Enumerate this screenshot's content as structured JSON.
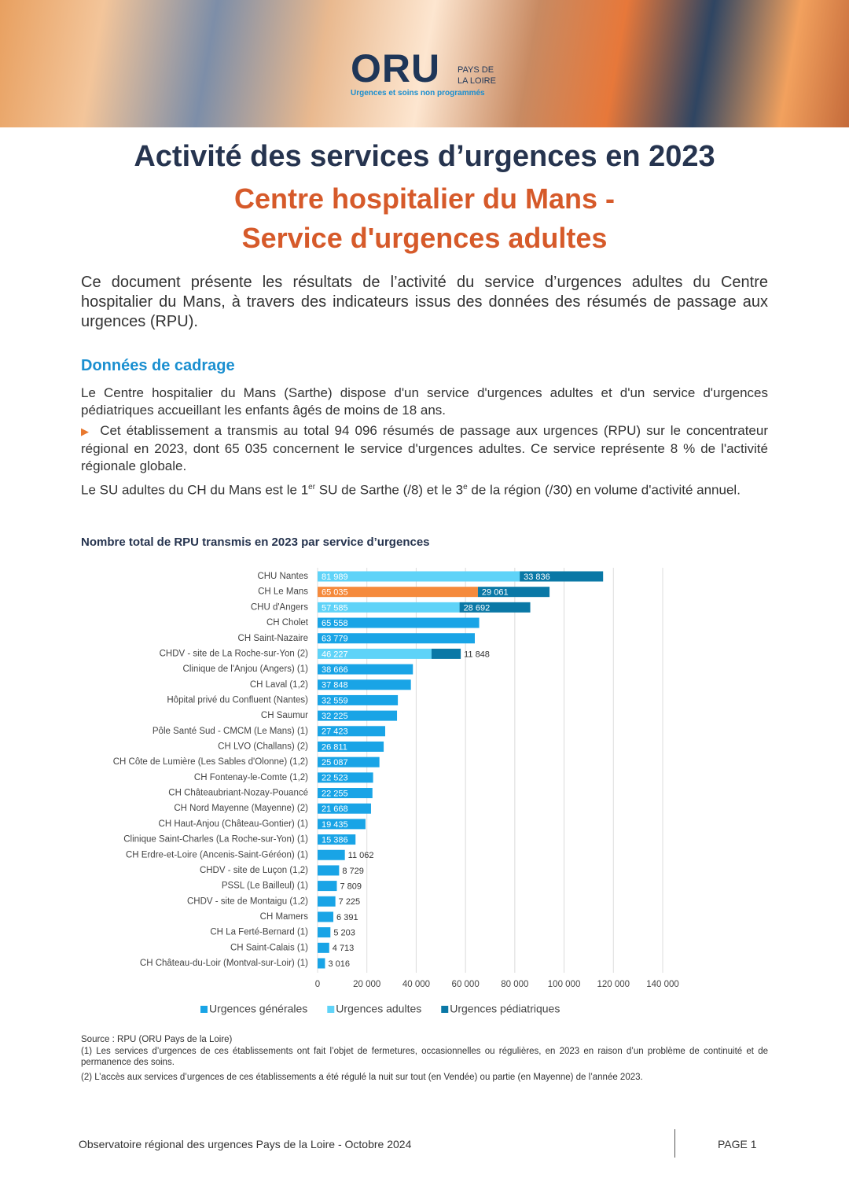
{
  "header": {
    "logo": "ORU",
    "logo_region_line1": "PAYS DE",
    "logo_region_line2": "LA LOIRE",
    "logo_tagline": "Urgences et soins non programmés"
  },
  "title": "Activité des services d’urgences en 2023",
  "subtitle_lines": [
    "Centre hospitalier du Mans -",
    "Service d'urgences adultes"
  ],
  "intro": "Ce document présente les résultats de l’activité du service d’urgences adultes du Centre hospitalier du Mans, à travers des indicateurs issus des données des résumés de passage aux urgences (RPU).",
  "section_heading": "Données de cadrage",
  "paragraphs": [
    "Le Centre hospitalier du Mans (Sarthe) dispose d'un service d'urgences adultes et d'un service d'urgences pédiatriques accueillant les enfants âgés de moins de 18 ans.",
    "Cet établissement a transmis au total 94 096 résumés de passage aux urgences (RPU) sur le concentrateur régional en 2023, dont 65 035 concernent le service d'urgences adultes. Ce service représente 8 % de l'activité régionale globale."
  ],
  "ranking_parts": [
    "Le SU adultes du CH du Mans est le 1",
    "er",
    " SU de Sarthe (/8) et le 3",
    "e",
    " de la région (/30) en volume d'activité annuel."
  ],
  "chart_data": {
    "type": "bar",
    "orientation": "horizontal",
    "stacked": true,
    "grid": true,
    "title": "Nombre total de RPU transmis en 2023 par service d’urgences",
    "categories": [
      "CHU Nantes",
      "CH Le Mans",
      "CHU d'Angers",
      "CH Cholet",
      "CH Saint-Nazaire",
      "CHDV - site de La Roche-sur-Yon (2)",
      "Clinique de l'Anjou (Angers) (1)",
      "CH Laval (1,2)",
      "Hôpital privé du Confluent (Nantes)",
      "CH Saumur",
      "Pôle Santé Sud - CMCM (Le Mans) (1)",
      "CH LVO (Challans) (2)",
      "CH Côte de Lumière (Les Sables d'Olonne) (1,2)",
      "CH Fontenay-le-Comte (1,2)",
      "CH Châteaubriant-Nozay-Pouancé",
      "CH Nord Mayenne (Mayenne) (2)",
      "CH Haut-Anjou (Château-Gontier) (1)",
      "Clinique Saint-Charles (La Roche-sur-Yon) (1)",
      "CH Erdre-et-Loire (Ancenis-Saint-Géréon) (1)",
      "CHDV - site de Luçon (1,2)",
      "PSSL (Le Bailleul) (1)",
      "CHDV - site de Montaigu (1,2)",
      "CH Mamers",
      "CH La Ferté-Bernard (1)",
      "CH Saint-Calais (1)",
      "CH Château-du-Loir (Montval-sur-Loir) (1)"
    ],
    "series": [
      {
        "name": "Urgences générales",
        "color": "#19a4e6",
        "values": [
          null,
          null,
          null,
          65558,
          63779,
          null,
          38666,
          37848,
          32559,
          32225,
          27423,
          26811,
          25087,
          22523,
          22255,
          21668,
          19435,
          15386,
          11062,
          8729,
          7809,
          7225,
          6391,
          5203,
          4713,
          3016
        ],
        "value_labels": [
          null,
          null,
          null,
          "65 558",
          "63 779",
          null,
          "38 666",
          "37 848",
          "32 559",
          "32 225",
          "27 423",
          "26 811",
          "25 087",
          "22 523",
          "22 255",
          "21 668",
          "19 435",
          "15 386",
          "11 062",
          "8 729",
          "7 809",
          "7 225",
          "6 391",
          "5 203",
          "4 713",
          "3 016"
        ]
      },
      {
        "name": "Urgences adultes",
        "color": "#5fd3f8",
        "colors": [
          "#5fd3f8",
          "#f58a3c",
          "#5fd3f8",
          "#5fd3f8",
          "#5fd3f8",
          "#5fd3f8",
          "#5fd3f8",
          "#5fd3f8",
          "#5fd3f8",
          "#5fd3f8",
          "#5fd3f8",
          "#5fd3f8",
          "#5fd3f8",
          "#5fd3f8",
          "#5fd3f8",
          "#5fd3f8",
          "#5fd3f8",
          "#5fd3f8",
          "#5fd3f8",
          "#5fd3f8",
          "#5fd3f8",
          "#5fd3f8",
          "#5fd3f8",
          "#5fd3f8",
          "#5fd3f8",
          "#5fd3f8"
        ],
        "values": [
          81989,
          65035,
          57585,
          null,
          null,
          46227,
          null,
          null,
          null,
          null,
          null,
          null,
          null,
          null,
          null,
          null,
          null,
          null,
          null,
          null,
          null,
          null,
          null,
          null,
          null,
          null
        ],
        "value_labels": [
          "81 989",
          "65 035",
          "57 585",
          null,
          null,
          "46 227",
          null,
          null,
          null,
          null,
          null,
          null,
          null,
          null,
          null,
          null,
          null,
          null,
          null,
          null,
          null,
          null,
          null,
          null,
          null,
          null
        ]
      },
      {
        "name": "Urgences pédiatriques",
        "color": "#0a78a6",
        "values": [
          33836,
          29061,
          28692,
          null,
          null,
          11848,
          null,
          null,
          null,
          null,
          null,
          null,
          null,
          null,
          null,
          null,
          null,
          null,
          null,
          null,
          null,
          null,
          null,
          null,
          null,
          null
        ],
        "value_labels": [
          "33 836",
          "29 061",
          "28 692",
          null,
          null,
          "11 848",
          null,
          null,
          null,
          null,
          null,
          null,
          null,
          null,
          null,
          null,
          null,
          null,
          null,
          null,
          null,
          null,
          null,
          null,
          null,
          null
        ]
      }
    ],
    "xlim": [
      0,
      140000
    ],
    "xticks": [
      0,
      {
        "value": 20000,
        "label": "20 000"
      },
      {
        "value": 40000,
        "label": "40 000"
      },
      {
        "value": 60000,
        "label": "60 000"
      },
      {
        "value": 80000,
        "label": "80 000"
      },
      {
        "value": 100000,
        "label": "100 000"
      },
      {
        "value": 120000,
        "label": "120 000"
      },
      {
        "value": 140000,
        "label": "140 000"
      }
    ]
  },
  "source": "Source : RPU (ORU Pays de la Loire)",
  "notes": [
    "(1) Les services d’urgences de ces établissements ont fait l’objet de fermetures, occasionnelles ou régulières, en 2023 en raison d’un problème de continuité et de permanence des soins.",
    "(2) L’accès aux services d’urgences de ces établissements a été régulé la nuit sur tout (en Vendée) ou partie (en Mayenne) de l’année 2023."
  ],
  "footer": {
    "left": "Observatoire régional des urgences Pays de la Loire - Octobre 2024",
    "page": "PAGE 1"
  }
}
